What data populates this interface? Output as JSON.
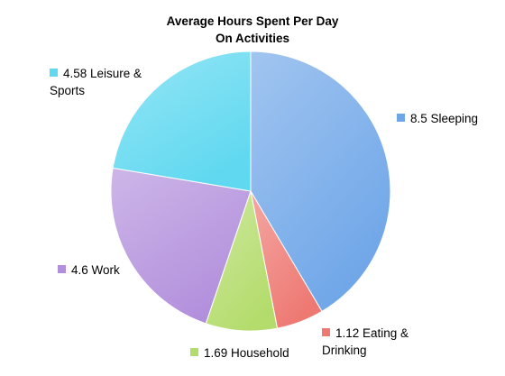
{
  "chart_data": {
    "type": "pie",
    "title_lines": [
      "Average Hours Spent Per Day",
      "On Activities"
    ],
    "slices": [
      {
        "label": "8.5 Sleeping",
        "value": 8.5,
        "color": "#6fa6e8"
      },
      {
        "label": "1.12 Eating & Drinking",
        "value": 1.12,
        "color": "#ee7872"
      },
      {
        "label": "1.69 Household",
        "value": 1.69,
        "color": "#b4dc6c"
      },
      {
        "label": "4.6 Work",
        "value": 4.6,
        "color": "#b28fdc"
      },
      {
        "label": "4.58 Leisure & Sports",
        "value": 4.58,
        "color": "#5fd8f0"
      }
    ],
    "start_angle": "12 o'clock",
    "direction": "clockwise",
    "legend": "labels beside slices"
  }
}
